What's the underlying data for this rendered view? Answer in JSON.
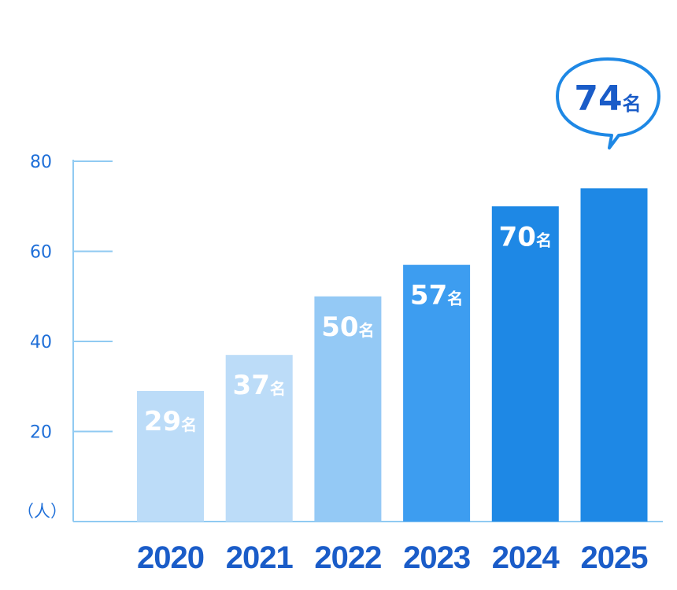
{
  "chart_data": {
    "type": "bar",
    "categories": [
      "2020",
      "2021",
      "2022",
      "2023",
      "2024",
      "2025"
    ],
    "values": [
      29,
      37,
      50,
      57,
      70,
      74
    ],
    "data_labels": [
      "29",
      "37",
      "50",
      "57",
      "70",
      "74"
    ],
    "data_label_suffix": "名",
    "unit_label": "（人）",
    "yticks": [
      "20",
      "40",
      "60",
      "80"
    ],
    "highlight": {
      "value": "74",
      "suffix": "名"
    },
    "colors": [
      "#bcdcf8",
      "#bcdcf8",
      "#94c9f5",
      "#3d9df0",
      "#1e88e5",
      "#1e88e5"
    ],
    "axis_color": "#90caf2",
    "text_color": "#1a5cc8"
  }
}
